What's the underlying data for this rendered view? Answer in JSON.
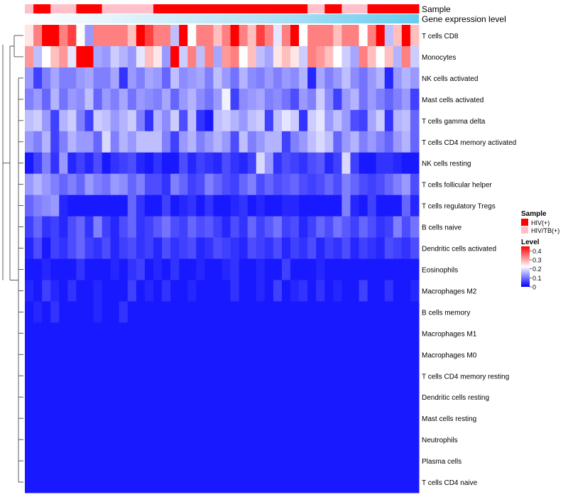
{
  "chart_data": {
    "type": "heatmap",
    "title": "",
    "annotation_titles": [
      "Sample",
      "Gene expression level"
    ],
    "rows": [
      "T cells CD8",
      "Monocytes",
      "NK cells activated",
      "Mast cells activated",
      "T cells gamma delta",
      "T cells CD4 memory activated",
      "NK cells resting",
      "T cells follicular helper",
      "T cells regulatory  Tregs",
      "B cells naive",
      "Dendritic cells activated",
      "Eosinophils",
      "Macrophages M2",
      "B cells memory",
      "Macrophages M1",
      "Macrophages M0",
      "T cells CD4 memory resting",
      "Dendritic cells resting",
      "Mast cells resting",
      "Neutrophils",
      "Plasma cells",
      "T cells CD4 naive"
    ],
    "columns": 46,
    "sample_groups": [
      1,
      0,
      0,
      1,
      1,
      1,
      0,
      0,
      0,
      1,
      1,
      1,
      1,
      1,
      1,
      0,
      0,
      0,
      0,
      0,
      0,
      0,
      0,
      0,
      0,
      0,
      0,
      0,
      0,
      0,
      0,
      0,
      0,
      1,
      1,
      0,
      0,
      1,
      1,
      1,
      0,
      0,
      0,
      0,
      0,
      0
    ],
    "level_range": [
      0,
      0.45
    ],
    "row_levels": [
      [
        0.22,
        0.3,
        0.4,
        0.4,
        0.3,
        0.35,
        0.2,
        0.12,
        0.3,
        0.3,
        0.3,
        0.3,
        0.25,
        0.4,
        0.35,
        0.3,
        0.3,
        0.15,
        0.4,
        0.2,
        0.3,
        0.3,
        0.25,
        0.3,
        0.4,
        0.3,
        0.25,
        0.35,
        0.3,
        0.18,
        0.3,
        0.4,
        0.2,
        0.3,
        0.3,
        0.3,
        0.25,
        0.3,
        0.3,
        0.2,
        0.3,
        0.4,
        0.15,
        0.25,
        0.4,
        0.25
      ],
      [
        0.28,
        0.15,
        0.2,
        0.25,
        0.28,
        0.18,
        0.4,
        0.4,
        0.13,
        0.12,
        0.16,
        0.14,
        0.12,
        0.18,
        0.25,
        0.22,
        0.12,
        0.4,
        0.16,
        0.3,
        0.15,
        0.3,
        0.13,
        0.28,
        0.3,
        0.2,
        0.25,
        0.15,
        0.13,
        0.22,
        0.25,
        0.22,
        0.16,
        0.3,
        0.28,
        0.25,
        0.2,
        0.16,
        0.13,
        0.3,
        0.25,
        0.2,
        0.25,
        0.14,
        0.3,
        0.16
      ],
      [
        0.12,
        0.05,
        0.1,
        0.13,
        0.1,
        0.1,
        0.12,
        0.13,
        0.1,
        0.1,
        0.13,
        0.04,
        0.12,
        0.1,
        0.13,
        0.12,
        0.08,
        0.15,
        0.11,
        0.12,
        0.13,
        0.1,
        0.15,
        0.12,
        0.09,
        0.14,
        0.11,
        0.1,
        0.12,
        0.1,
        0.12,
        0.11,
        0.14,
        0.03,
        0.13,
        0.1,
        0.12,
        0.15,
        0.11,
        0.09,
        0.12,
        0.14,
        0.03,
        0.12,
        0.14,
        0.12
      ],
      [
        0.1,
        0.12,
        0.08,
        0.14,
        0.09,
        0.12,
        0.11,
        0.15,
        0.08,
        0.12,
        0.1,
        0.13,
        0.09,
        0.12,
        0.11,
        0.1,
        0.13,
        0.08,
        0.12,
        0.14,
        0.11,
        0.09,
        0.12,
        0.19,
        0.05,
        0.11,
        0.12,
        0.13,
        0.1,
        0.11,
        0.09,
        0.06,
        0.12,
        0.1,
        0.16,
        0.11,
        0.05,
        0.12,
        0.14,
        0.09,
        0.12,
        0.1,
        0.08,
        0.1,
        0.12,
        0.05
      ],
      [
        0.15,
        0.16,
        0.12,
        0.05,
        0.14,
        0.16,
        0.1,
        0.05,
        0.16,
        0.15,
        0.12,
        0.14,
        0.16,
        0.1,
        0.04,
        0.14,
        0.11,
        0.16,
        0.06,
        0.15,
        0.04,
        0.02,
        0.15,
        0.16,
        0.14,
        0.12,
        0.15,
        0.16,
        0.05,
        0.15,
        0.18,
        0.16,
        0.04,
        0.16,
        0.18,
        0.12,
        0.15,
        0.12,
        0.06,
        0.05,
        0.13,
        0.16,
        0.04,
        0.14,
        0.15,
        0.08
      ],
      [
        0.12,
        0.1,
        0.14,
        0.05,
        0.1,
        0.14,
        0.12,
        0.12,
        0.08,
        0.17,
        0.1,
        0.14,
        0.12,
        0.15,
        0.15,
        0.15,
        0.1,
        0.05,
        0.12,
        0.14,
        0.1,
        0.12,
        0.14,
        0.12,
        0.06,
        0.15,
        0.1,
        0.12,
        0.14,
        0.14,
        0.05,
        0.1,
        0.12,
        0.15,
        0.17,
        0.15,
        0.08,
        0.12,
        0.14,
        0.1,
        0.12,
        0.1,
        0.08,
        0.12,
        0.14,
        0.08
      ],
      [
        0.02,
        0.05,
        0.1,
        0.04,
        0.12,
        0.03,
        0.05,
        0.03,
        0.06,
        0.02,
        0.04,
        0.05,
        0.06,
        0.03,
        0.02,
        0.04,
        0.02,
        0.02,
        0.06,
        0.03,
        0.05,
        0.04,
        0.03,
        0.06,
        0.04,
        0.03,
        0.05,
        0.17,
        0.12,
        0.04,
        0.06,
        0.05,
        0.04,
        0.06,
        0.07,
        0.03,
        0.05,
        0.17,
        0.05,
        0.02,
        0.02,
        0.04,
        0.04,
        0.03,
        0.02,
        0.02
      ],
      [
        0.12,
        0.14,
        0.12,
        0.1,
        0.08,
        0.1,
        0.08,
        0.12,
        0.1,
        0.09,
        0.12,
        0.11,
        0.08,
        0.1,
        0.06,
        0.06,
        0.04,
        0.1,
        0.08,
        0.05,
        0.06,
        0.1,
        0.08,
        0.06,
        0.05,
        0.08,
        0.1,
        0.06,
        0.08,
        0.06,
        0.07,
        0.08,
        0.06,
        0.05,
        0.06,
        0.08,
        0.06,
        0.1,
        0.08,
        0.06,
        0.05,
        0.06,
        0.08,
        0.1,
        0.12,
        0.06
      ],
      [
        0.08,
        0.1,
        0.11,
        0.12,
        0.03,
        0.02,
        0.02,
        0.02,
        0.02,
        0.02,
        0.02,
        0.02,
        0.08,
        0.04,
        0.02,
        0.02,
        0.05,
        0.02,
        0.03,
        0.04,
        0.02,
        0.04,
        0.02,
        0.02,
        0.03,
        0.04,
        0.02,
        0.03,
        0.02,
        0.02,
        0.03,
        0.03,
        0.02,
        0.02,
        0.02,
        0.02,
        0.02,
        0.1,
        0.03,
        0.02,
        0.05,
        0.02,
        0.02,
        0.02,
        0.08,
        0.03
      ],
      [
        0.05,
        0.08,
        0.04,
        0.05,
        0.03,
        0.06,
        0.08,
        0.04,
        0.1,
        0.05,
        0.03,
        0.06,
        0.08,
        0.04,
        0.05,
        0.07,
        0.09,
        0.06,
        0.05,
        0.08,
        0.06,
        0.07,
        0.05,
        0.03,
        0.06,
        0.04,
        0.08,
        0.05,
        0.07,
        0.09,
        0.05,
        0.06,
        0.03,
        0.05,
        0.08,
        0.06,
        0.09,
        0.07,
        0.05,
        0.08,
        0.06,
        0.04,
        0.05,
        0.1,
        0.06,
        0.09
      ],
      [
        0.03,
        0.06,
        0.02,
        0.05,
        0.04,
        0.06,
        0.08,
        0.05,
        0.04,
        0.06,
        0.03,
        0.05,
        0.06,
        0.04,
        0.05,
        0.03,
        0.06,
        0.04,
        0.05,
        0.06,
        0.03,
        0.04,
        0.06,
        0.05,
        0.04,
        0.03,
        0.06,
        0.05,
        0.04,
        0.06,
        0.03,
        0.05,
        0.04,
        0.06,
        0.03,
        0.05,
        0.04,
        0.06,
        0.03,
        0.05,
        0.04,
        0.03,
        0.06,
        0.05,
        0.04,
        0.06
      ],
      [
        0.02,
        0.02,
        0.03,
        0.02,
        0.02,
        0.02,
        0.04,
        0.02,
        0.02,
        0.02,
        0.03,
        0.02,
        0.04,
        0.05,
        0.02,
        0.03,
        0.02,
        0.04,
        0.02,
        0.02,
        0.03,
        0.02,
        0.02,
        0.03,
        0.04,
        0.02,
        0.02,
        0.03,
        0.02,
        0.02,
        0.05,
        0.02,
        0.02,
        0.02,
        0.03,
        0.02,
        0.02,
        0.02,
        0.02,
        0.02,
        0.02,
        0.02,
        0.02,
        0.02,
        0.02,
        0.02
      ],
      [
        0.03,
        0.02,
        0.05,
        0.03,
        0.02,
        0.04,
        0.02,
        0.02,
        0.03,
        0.02,
        0.02,
        0.02,
        0.05,
        0.02,
        0.03,
        0.02,
        0.04,
        0.02,
        0.02,
        0.03,
        0.02,
        0.02,
        0.02,
        0.02,
        0.04,
        0.02,
        0.02,
        0.03,
        0.02,
        0.05,
        0.02,
        0.03,
        0.04,
        0.02,
        0.04,
        0.02,
        0.03,
        0.02,
        0.02,
        0.05,
        0.02,
        0.02,
        0.04,
        0.02,
        0.02,
        0.03
      ],
      [
        0.02,
        0.03,
        0.02,
        0.04,
        0.02,
        0.02,
        0.02,
        0.02,
        0.03,
        0.02,
        0.02,
        0.04,
        0.02,
        0.02,
        0.02,
        0.02,
        0.02,
        0.02,
        0.02,
        0.02,
        0.02,
        0.02,
        0.02,
        0.02,
        0.02,
        0.02,
        0.02,
        0.02,
        0.02,
        0.02,
        0.02,
        0.02,
        0.02,
        0.02,
        0.02,
        0.02,
        0.02,
        0.02,
        0.02,
        0.02,
        0.02,
        0.02,
        0.02,
        0.02,
        0.02,
        0.02
      ],
      [
        0.02,
        0.02,
        0.02,
        0.02,
        0.02,
        0.02,
        0.02,
        0.02,
        0.02,
        0.02,
        0.02,
        0.02,
        0.02,
        0.02,
        0.02,
        0.02,
        0.02,
        0.02,
        0.02,
        0.02,
        0.02,
        0.02,
        0.02,
        0.02,
        0.02,
        0.02,
        0.02,
        0.02,
        0.02,
        0.02,
        0.02,
        0.02,
        0.02,
        0.02,
        0.02,
        0.02,
        0.02,
        0.02,
        0.02,
        0.02,
        0.02,
        0.02,
        0.02,
        0.02,
        0.02,
        0.02
      ],
      [
        0.02,
        0.02,
        0.02,
        0.02,
        0.02,
        0.02,
        0.02,
        0.02,
        0.02,
        0.02,
        0.02,
        0.02,
        0.02,
        0.02,
        0.02,
        0.02,
        0.02,
        0.02,
        0.02,
        0.02,
        0.02,
        0.02,
        0.02,
        0.02,
        0.02,
        0.02,
        0.02,
        0.02,
        0.02,
        0.02,
        0.02,
        0.02,
        0.02,
        0.02,
        0.02,
        0.02,
        0.02,
        0.02,
        0.02,
        0.02,
        0.02,
        0.02,
        0.02,
        0.02,
        0.02,
        0.02
      ],
      [
        0.02,
        0.02,
        0.02,
        0.02,
        0.02,
        0.02,
        0.02,
        0.02,
        0.02,
        0.02,
        0.02,
        0.02,
        0.02,
        0.02,
        0.02,
        0.02,
        0.02,
        0.02,
        0.02,
        0.02,
        0.02,
        0.02,
        0.02,
        0.02,
        0.02,
        0.02,
        0.02,
        0.02,
        0.02,
        0.02,
        0.02,
        0.02,
        0.02,
        0.02,
        0.02,
        0.02,
        0.02,
        0.02,
        0.02,
        0.02,
        0.02,
        0.02,
        0.02,
        0.02,
        0.02,
        0.02
      ],
      [
        0.02,
        0.02,
        0.02,
        0.02,
        0.02,
        0.02,
        0.02,
        0.02,
        0.02,
        0.02,
        0.02,
        0.02,
        0.02,
        0.02,
        0.02,
        0.02,
        0.02,
        0.02,
        0.02,
        0.02,
        0.02,
        0.02,
        0.02,
        0.02,
        0.02,
        0.02,
        0.02,
        0.02,
        0.02,
        0.02,
        0.02,
        0.02,
        0.02,
        0.02,
        0.02,
        0.02,
        0.02,
        0.02,
        0.02,
        0.02,
        0.02,
        0.02,
        0.02,
        0.02,
        0.02,
        0.02
      ],
      [
        0.02,
        0.02,
        0.02,
        0.02,
        0.02,
        0.02,
        0.02,
        0.02,
        0.02,
        0.02,
        0.02,
        0.02,
        0.02,
        0.02,
        0.02,
        0.02,
        0.02,
        0.02,
        0.02,
        0.02,
        0.02,
        0.02,
        0.02,
        0.02,
        0.02,
        0.02,
        0.02,
        0.02,
        0.02,
        0.02,
        0.02,
        0.02,
        0.02,
        0.02,
        0.02,
        0.02,
        0.02,
        0.02,
        0.02,
        0.02,
        0.02,
        0.02,
        0.02,
        0.02,
        0.02,
        0.02
      ],
      [
        0.02,
        0.02,
        0.02,
        0.02,
        0.02,
        0.02,
        0.02,
        0.02,
        0.02,
        0.02,
        0.02,
        0.02,
        0.02,
        0.02,
        0.02,
        0.02,
        0.02,
        0.02,
        0.02,
        0.02,
        0.02,
        0.02,
        0.02,
        0.02,
        0.02,
        0.02,
        0.02,
        0.02,
        0.02,
        0.02,
        0.02,
        0.02,
        0.02,
        0.02,
        0.02,
        0.02,
        0.02,
        0.02,
        0.02,
        0.02,
        0.02,
        0.02,
        0.02,
        0.02,
        0.02,
        0.02
      ],
      [
        0.02,
        0.02,
        0.02,
        0.02,
        0.02,
        0.02,
        0.02,
        0.02,
        0.02,
        0.02,
        0.02,
        0.02,
        0.02,
        0.02,
        0.02,
        0.02,
        0.02,
        0.02,
        0.02,
        0.02,
        0.02,
        0.02,
        0.02,
        0.02,
        0.02,
        0.02,
        0.02,
        0.02,
        0.02,
        0.02,
        0.02,
        0.02,
        0.02,
        0.02,
        0.02,
        0.02,
        0.02,
        0.02,
        0.02,
        0.02,
        0.02,
        0.02,
        0.02,
        0.02,
        0.02,
        0.02
      ],
      [
        0.02,
        0.02,
        0.02,
        0.02,
        0.02,
        0.02,
        0.02,
        0.02,
        0.02,
        0.02,
        0.02,
        0.02,
        0.02,
        0.02,
        0.02,
        0.02,
        0.02,
        0.02,
        0.02,
        0.02,
        0.02,
        0.02,
        0.02,
        0.02,
        0.02,
        0.02,
        0.02,
        0.02,
        0.02,
        0.02,
        0.02,
        0.02,
        0.02,
        0.02,
        0.02,
        0.02,
        0.02,
        0.02,
        0.02,
        0.02,
        0.02,
        0.02,
        0.02,
        0.02,
        0.02,
        0.02
      ]
    ],
    "legend": {
      "sample_title": "Sample",
      "sample_items": [
        {
          "label": "HIV(+)",
          "color": "#ff0000"
        },
        {
          "label": "HIV/TB(+)",
          "color": "#ffc0cb"
        }
      ],
      "level_title": "Level",
      "level_ticks": [
        "0.4",
        "0.3",
        "0.2",
        "0.1",
        "0"
      ],
      "level_tick_values": [
        0.4,
        0.3,
        0.2,
        0.1,
        0
      ]
    },
    "colors": {
      "low": "#0000ff",
      "mid": "#ffffff",
      "high": "#ff0000",
      "gene_expression_bar": "#66ccee",
      "background": "#ffffff"
    }
  }
}
